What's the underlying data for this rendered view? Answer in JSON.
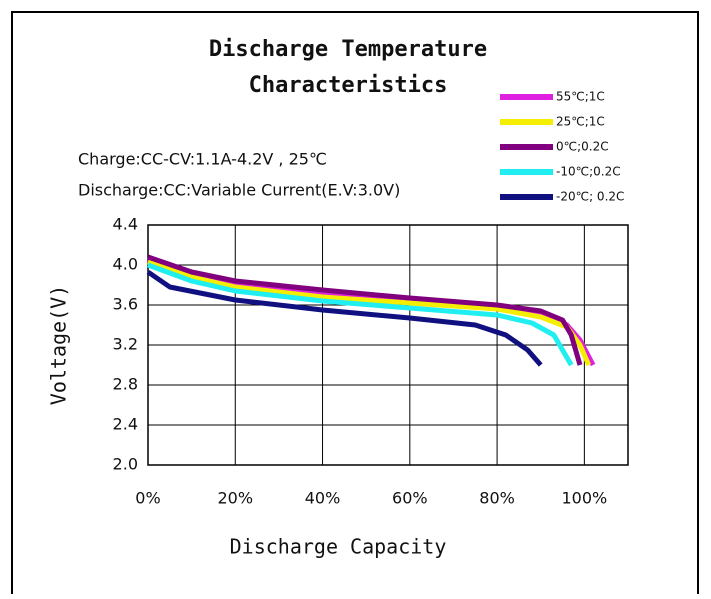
{
  "chart_data": {
    "type": "line",
    "title": [
      "Discharge Temperature",
      "Characteristics"
    ],
    "annotations": [
      "Charge:CC-CV:1.1A-4.2V , 25℃",
      "Discharge:CC:Variable Current(E.V:3.0V)"
    ],
    "y_label": "Voltage(V)",
    "x_label": "Discharge Capacity",
    "xlim": [
      0,
      110
    ],
    "ylim": [
      2.0,
      4.4
    ],
    "xticks": [
      {
        "value": 0,
        "label": "0%"
      },
      {
        "value": 20,
        "label": "20%"
      },
      {
        "value": 40,
        "label": "40%"
      },
      {
        "value": 60,
        "label": "60%"
      },
      {
        "value": 80,
        "label": "80%"
      },
      {
        "value": 100,
        "label": "100%"
      }
    ],
    "yticks": [
      {
        "value": 2.0,
        "label": "2.0"
      },
      {
        "value": 2.4,
        "label": "2.4"
      },
      {
        "value": 2.8,
        "label": "2.8"
      },
      {
        "value": 3.2,
        "label": "3.2"
      },
      {
        "value": 3.6,
        "label": "3.6"
      },
      {
        "value": 4.0,
        "label": "4.0"
      },
      {
        "value": 4.4,
        "label": "4.4"
      }
    ],
    "grid": true,
    "series": [
      {
        "name": "55℃;1C",
        "color": "#e020e0",
        "x": [
          0,
          10,
          20,
          40,
          60,
          80,
          90,
          96,
          99,
          102
        ],
        "values": [
          4.05,
          3.9,
          3.8,
          3.7,
          3.63,
          3.57,
          3.5,
          3.4,
          3.25,
          3.0
        ]
      },
      {
        "name": "25℃;1C",
        "color": "#f5ee00",
        "x": [
          0,
          10,
          20,
          40,
          60,
          80,
          90,
          96,
          99,
          101
        ],
        "values": [
          4.03,
          3.88,
          3.78,
          3.68,
          3.62,
          3.56,
          3.48,
          3.38,
          3.2,
          3.0
        ]
      },
      {
        "name": "0℃;0.2C",
        "color": "#800080",
        "x": [
          0,
          10,
          20,
          40,
          60,
          80,
          90,
          95,
          97,
          99
        ],
        "values": [
          4.08,
          3.93,
          3.84,
          3.75,
          3.67,
          3.6,
          3.54,
          3.45,
          3.3,
          3.0
        ]
      },
      {
        "name": "-10℃;0.2C",
        "color": "#20eef0",
        "x": [
          0,
          10,
          20,
          40,
          60,
          80,
          88,
          93,
          97
        ],
        "values": [
          4.0,
          3.84,
          3.74,
          3.64,
          3.57,
          3.5,
          3.42,
          3.3,
          3.0
        ]
      },
      {
        "name": "-20℃; 0.2C",
        "color": "#101080",
        "x": [
          0,
          5,
          20,
          40,
          60,
          75,
          82,
          87,
          90
        ],
        "values": [
          3.93,
          3.78,
          3.65,
          3.55,
          3.47,
          3.4,
          3.3,
          3.15,
          3.0
        ]
      }
    ]
  }
}
